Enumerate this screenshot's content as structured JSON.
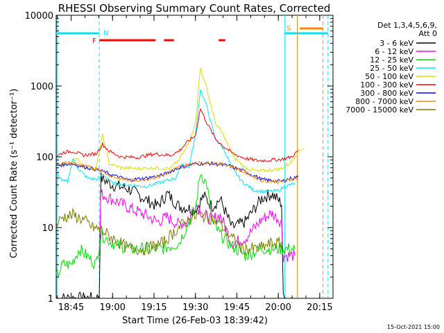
{
  "chart_data": {
    "type": "line",
    "title": "RHESSI Observing Summary Count Rates, Corrected",
    "xlabel": "Start Time (26-Feb-03 18:39:42)",
    "ylabel": "Corrected Count Rate (s⁻¹ detector⁻¹)",
    "yscale": "log",
    "ylim": [
      1,
      10000
    ],
    "xlim_minutes": [
      18.66,
      20.33
    ],
    "x_unit": "hours",
    "y_ticks": [
      {
        "v": 1,
        "label": "1"
      },
      {
        "v": 10,
        "label": "10"
      },
      {
        "v": 100,
        "label": "100"
      },
      {
        "v": 1000,
        "label": "1000"
      },
      {
        "v": 10000,
        "label": "10000"
      }
    ],
    "x_ticks": [
      {
        "v": 18.75,
        "label": "18:45"
      },
      {
        "v": 19.0,
        "label": "19:00"
      },
      {
        "v": 19.25,
        "label": "19:15"
      },
      {
        "v": 19.5,
        "label": "19:30"
      },
      {
        "v": 19.75,
        "label": "19:45"
      },
      {
        "v": 20.0,
        "label": "20:00"
      },
      {
        "v": 20.25,
        "label": "20:15"
      }
    ],
    "legend_header": [
      "Det 1,3,4,5,6,9,",
      "Att 0"
    ],
    "legend_position": "right",
    "series": [
      {
        "name": "3 - 6 keV",
        "color": "#000000",
        "points": [
          [
            18.66,
            1
          ],
          [
            18.92,
            1
          ],
          [
            18.93,
            50
          ],
          [
            19.0,
            40
          ],
          [
            19.1,
            35
          ],
          [
            19.2,
            25
          ],
          [
            19.27,
            20
          ],
          [
            19.33,
            30
          ],
          [
            19.4,
            20
          ],
          [
            19.5,
            18
          ],
          [
            19.55,
            28
          ],
          [
            19.6,
            20
          ],
          [
            19.65,
            25
          ],
          [
            19.72,
            10
          ],
          [
            19.8,
            12
          ],
          [
            19.9,
            26
          ],
          [
            19.96,
            30
          ],
          [
            20.02,
            22
          ],
          [
            20.03,
            1
          ],
          [
            20.1,
            1
          ]
        ]
      },
      {
        "name": "6 - 12 keV",
        "color": "#ff00ff",
        "points": [
          [
            18.92,
            4
          ],
          [
            18.93,
            30
          ],
          [
            19.0,
            25
          ],
          [
            19.1,
            19
          ],
          [
            19.2,
            15
          ],
          [
            19.27,
            12
          ],
          [
            19.33,
            14
          ],
          [
            19.4,
            11
          ],
          [
            19.46,
            13
          ],
          [
            19.5,
            22
          ],
          [
            19.55,
            15
          ],
          [
            19.6,
            13
          ],
          [
            19.65,
            15
          ],
          [
            19.72,
            6
          ],
          [
            19.8,
            7
          ],
          [
            19.9,
            13
          ],
          [
            19.96,
            16
          ],
          [
            20.02,
            12
          ],
          [
            20.03,
            4
          ],
          [
            20.1,
            4
          ]
        ]
      },
      {
        "name": "12 - 25 keV",
        "color": "#00dd00",
        "points": [
          [
            18.66,
            2
          ],
          [
            18.7,
            3
          ],
          [
            18.75,
            3
          ],
          [
            18.8,
            5
          ],
          [
            18.9,
            3
          ],
          [
            18.93,
            8
          ],
          [
            19.0,
            6
          ],
          [
            19.1,
            5
          ],
          [
            19.2,
            5
          ],
          [
            19.3,
            5
          ],
          [
            19.4,
            6
          ],
          [
            19.46,
            12
          ],
          [
            19.5,
            18
          ],
          [
            19.53,
            60
          ],
          [
            19.57,
            40
          ],
          [
            19.6,
            12
          ],
          [
            19.65,
            8
          ],
          [
            19.7,
            6
          ],
          [
            19.8,
            4
          ],
          [
            19.9,
            5
          ],
          [
            20.0,
            5
          ],
          [
            20.1,
            5
          ]
        ]
      },
      {
        "name": "25 - 50 keV",
        "color": "#00e5ff",
        "points": [
          [
            18.66,
            60
          ],
          [
            18.7,
            45
          ],
          [
            18.73,
            45
          ],
          [
            18.76,
            95
          ],
          [
            18.8,
            65
          ],
          [
            18.85,
            50
          ],
          [
            18.9,
            48
          ],
          [
            18.95,
            55
          ],
          [
            19.0,
            42
          ],
          [
            19.1,
            40
          ],
          [
            19.2,
            38
          ],
          [
            19.3,
            44
          ],
          [
            19.38,
            50
          ],
          [
            19.42,
            80
          ],
          [
            19.46,
            70
          ],
          [
            19.5,
            200
          ],
          [
            19.53,
            900
          ],
          [
            19.57,
            500
          ],
          [
            19.62,
            180
          ],
          [
            19.67,
            130
          ],
          [
            19.72,
            70
          ],
          [
            19.78,
            45
          ],
          [
            19.85,
            34
          ],
          [
            19.92,
            32
          ],
          [
            20.0,
            33
          ],
          [
            20.04,
            38
          ],
          [
            20.1,
            42
          ]
        ]
      },
      {
        "name": "50 - 100 keV",
        "color": "#dddd00",
        "points": [
          [
            18.66,
            70
          ],
          [
            18.7,
            80
          ],
          [
            18.74,
            80
          ],
          [
            18.78,
            95
          ],
          [
            18.84,
            70
          ],
          [
            18.9,
            68
          ],
          [
            18.94,
            200
          ],
          [
            18.98,
            80
          ],
          [
            19.05,
            70
          ],
          [
            19.15,
            68
          ],
          [
            19.25,
            70
          ],
          [
            19.35,
            68
          ],
          [
            19.4,
            90
          ],
          [
            19.45,
            140
          ],
          [
            19.5,
            300
          ],
          [
            19.53,
            1800
          ],
          [
            19.57,
            900
          ],
          [
            19.62,
            300
          ],
          [
            19.67,
            200
          ],
          [
            19.73,
            100
          ],
          [
            19.8,
            70
          ],
          [
            19.88,
            62
          ],
          [
            19.95,
            65
          ],
          [
            20.02,
            68
          ],
          [
            20.08,
            85
          ],
          [
            20.12,
            120
          ],
          [
            20.15,
            130
          ]
        ]
      },
      {
        "name": "100 - 300 keV",
        "color": "#ff0000",
        "points": [
          [
            18.66,
            100
          ],
          [
            18.7,
            115
          ],
          [
            18.76,
            120
          ],
          [
            18.82,
            105
          ],
          [
            18.9,
            110
          ],
          [
            18.94,
            150
          ],
          [
            18.98,
            120
          ],
          [
            19.05,
            100
          ],
          [
            19.15,
            98
          ],
          [
            19.25,
            110
          ],
          [
            19.35,
            105
          ],
          [
            19.4,
            120
          ],
          [
            19.45,
            160
          ],
          [
            19.5,
            200
          ],
          [
            19.53,
            480
          ],
          [
            19.57,
            300
          ],
          [
            19.62,
            180
          ],
          [
            19.67,
            140
          ],
          [
            19.73,
            110
          ],
          [
            19.8,
            95
          ],
          [
            19.88,
            88
          ],
          [
            19.95,
            90
          ],
          [
            20.02,
            92
          ],
          [
            20.08,
            100
          ],
          [
            20.12,
            120
          ]
        ]
      },
      {
        "name": "300 - 800 keV",
        "color": "#0000ff",
        "points": [
          [
            18.66,
            75
          ],
          [
            18.75,
            80
          ],
          [
            18.85,
            70
          ],
          [
            18.92,
            65
          ],
          [
            19.0,
            55
          ],
          [
            19.1,
            47
          ],
          [
            19.2,
            50
          ],
          [
            19.3,
            55
          ],
          [
            19.4,
            70
          ],
          [
            19.5,
            80
          ],
          [
            19.6,
            80
          ],
          [
            19.7,
            75
          ],
          [
            19.8,
            62
          ],
          [
            19.9,
            48
          ],
          [
            19.96,
            46
          ],
          [
            20.02,
            45
          ],
          [
            20.08,
            50
          ],
          [
            20.12,
            52
          ]
        ]
      },
      {
        "name": "800 - 7000 keV",
        "color": "#ff8800",
        "points": [
          [
            18.66,
            80
          ],
          [
            18.75,
            82
          ],
          [
            18.85,
            72
          ],
          [
            18.92,
            66
          ],
          [
            19.0,
            52
          ],
          [
            19.1,
            46
          ],
          [
            19.2,
            48
          ],
          [
            19.3,
            54
          ],
          [
            19.4,
            72
          ],
          [
            19.5,
            82
          ],
          [
            19.6,
            82
          ],
          [
            19.7,
            76
          ],
          [
            19.8,
            60
          ],
          [
            19.9,
            46
          ],
          [
            19.96,
            45
          ],
          [
            20.02,
            44
          ],
          [
            20.08,
            48
          ],
          [
            20.12,
            50
          ]
        ]
      },
      {
        "name": "7000 - 15000 keV",
        "color": "#7a7a00",
        "points": [
          [
            18.66,
            11
          ],
          [
            18.7,
            14
          ],
          [
            18.76,
            15
          ],
          [
            18.82,
            13
          ],
          [
            18.88,
            10
          ],
          [
            18.94,
            9
          ],
          [
            19.0,
            7
          ],
          [
            19.1,
            5
          ],
          [
            19.2,
            5
          ],
          [
            19.3,
            6
          ],
          [
            19.4,
            10
          ],
          [
            19.46,
            13
          ],
          [
            19.52,
            15
          ],
          [
            19.58,
            14
          ],
          [
            19.64,
            12
          ],
          [
            19.7,
            8
          ],
          [
            19.78,
            5
          ],
          [
            19.88,
            5
          ],
          [
            19.96,
            6
          ],
          [
            20.03,
            6
          ]
        ]
      }
    ],
    "annotations": [
      {
        "label": "N",
        "color": "#00e5ff"
      },
      {
        "label": "F",
        "color": "#ff0000"
      },
      {
        "label": "S",
        "color": "#ff8800"
      }
    ],
    "footer_date": "15-Oct-2021 15:00"
  }
}
